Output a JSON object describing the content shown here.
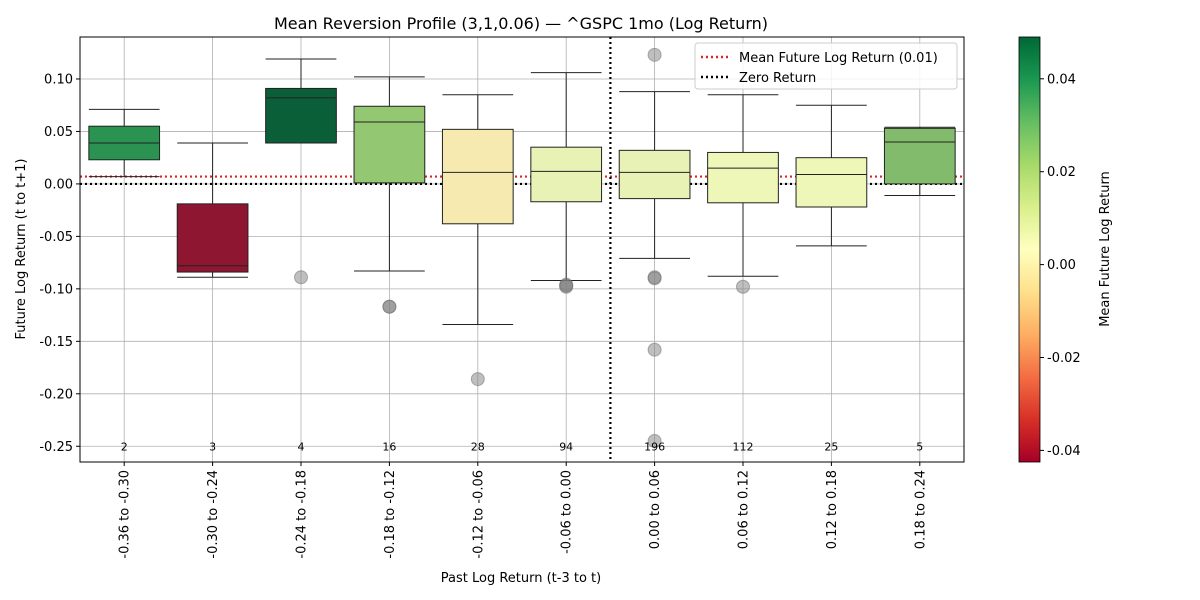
{
  "chart_data": {
    "type": "box",
    "title": "Mean Reversion Profile (3,1,0.06) — ^GSPC 1mo (Log Return)",
    "xlabel": "Past Log Return (t-3 to t)",
    "ylabel": "Future Log Return (t to t+1)",
    "ylim": [
      -0.265,
      0.14
    ],
    "yticks": [
      -0.25,
      -0.2,
      -0.15,
      -0.1,
      -0.05,
      0.0,
      0.05,
      0.1
    ],
    "ytick_labels": [
      "-0.25",
      "-0.20",
      "-0.15",
      "-0.10",
      "-0.05",
      "0.00",
      "0.05",
      "0.10"
    ],
    "grid": true,
    "legend_position": "top-right",
    "legend": [
      {
        "label": "Mean Future Log Return (0.01)",
        "style": "dotted",
        "color": "#d62728"
      },
      {
        "label": "Zero Return",
        "style": "dotted",
        "color": "#000000"
      }
    ],
    "mean_line": 0.007,
    "zero_line": 0.0,
    "divider_between": [
      5,
      6
    ],
    "colorbar": {
      "label": "Mean Future Log Return",
      "range": [
        -0.0425,
        0.049
      ],
      "ticks": [
        -0.04,
        -0.02,
        0.0,
        0.02,
        0.04
      ],
      "tick_labels": [
        "-0.04",
        "-0.02",
        "0.00",
        "0.02",
        "0.04"
      ],
      "colormap": "RdYlGn"
    },
    "boxes": [
      {
        "category": "-0.36 to -0.30",
        "count": "2",
        "q1": 0.023,
        "median": 0.039,
        "q3": 0.055,
        "whisker_low": 0.007,
        "whisker_high": 0.071,
        "outliers": [],
        "color": "#2b9352"
      },
      {
        "category": "-0.30 to -0.24",
        "count": "3",
        "q1": -0.084,
        "median": -0.078,
        "q3": -0.019,
        "whisker_low": -0.089,
        "whisker_high": 0.039,
        "outliers": [],
        "color": "#8f1631"
      },
      {
        "category": "-0.24 to -0.18",
        "count": "4",
        "q1": 0.039,
        "median": 0.082,
        "q3": 0.091,
        "whisker_low": 0.039,
        "whisker_high": 0.119,
        "outliers": [
          -0.089
        ],
        "color": "#0a5e38"
      },
      {
        "category": "-0.18 to -0.12",
        "count": "16",
        "q1": 0.001,
        "median": 0.059,
        "q3": 0.074,
        "whisker_low": -0.083,
        "whisker_high": 0.102,
        "outliers": [
          -0.117,
          -0.117
        ],
        "color": "#94c772"
      },
      {
        "category": "-0.12 to -0.06",
        "count": "28",
        "q1": -0.038,
        "median": 0.011,
        "q3": 0.052,
        "whisker_low": -0.134,
        "whisker_high": 0.085,
        "outliers": [
          -0.186
        ],
        "color": "#f6eab0"
      },
      {
        "category": "-0.06 to 0.00",
        "count": "94",
        "q1": -0.017,
        "median": 0.012,
        "q3": 0.035,
        "whisker_low": -0.092,
        "whisker_high": 0.106,
        "outliers": [
          -0.096,
          -0.098,
          -0.097
        ],
        "color": "#e8f2b4"
      },
      {
        "category": "0.00 to 0.06",
        "count": "196",
        "q1": -0.014,
        "median": 0.011,
        "q3": 0.032,
        "whisker_low": -0.071,
        "whisker_high": 0.088,
        "outliers": [
          0.123,
          -0.089,
          -0.09,
          -0.158,
          -0.245
        ],
        "color": "#e8f2b4"
      },
      {
        "category": "0.06 to 0.12",
        "count": "112",
        "q1": -0.018,
        "median": 0.015,
        "q3": 0.03,
        "whisker_low": -0.088,
        "whisker_high": 0.085,
        "outliers": [
          -0.098
        ],
        "color": "#eef6b8"
      },
      {
        "category": "0.12 to 0.18",
        "count": "25",
        "q1": -0.022,
        "median": 0.009,
        "q3": 0.025,
        "whisker_low": -0.059,
        "whisker_high": 0.075,
        "outliers": [],
        "color": "#eef6b8"
      },
      {
        "category": "0.18 to 0.24",
        "count": "5",
        "q1": 0.0,
        "median": 0.04,
        "q3": 0.053,
        "whisker_low": -0.011,
        "whisker_high": 0.054,
        "outliers": [],
        "color": "#82bb6c"
      }
    ]
  }
}
